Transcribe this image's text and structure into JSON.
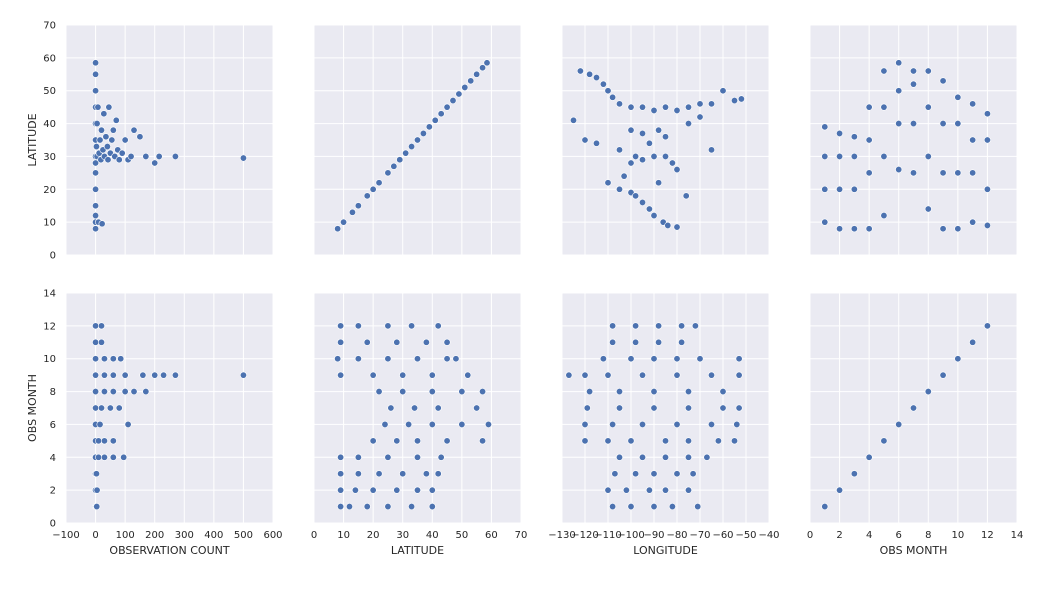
{
  "chart_data": {
    "type": "scatter",
    "layout": "pairplot",
    "grid": true,
    "style": {
      "background": "#eaeaf2",
      "grid_color": "#ffffff",
      "point_color": "#4c72b0",
      "point_edge": "#ffffff"
    },
    "columns": [
      {
        "key": "obs",
        "label": "OBSERVATION COUNT",
        "range": [
          -100,
          600
        ],
        "ticks": [
          "−100",
          "0",
          "100",
          "200",
          "300",
          "400",
          "500",
          "600"
        ]
      },
      {
        "key": "lat",
        "label": "LATITUDE",
        "range": [
          0,
          70
        ],
        "ticks": [
          "0",
          "10",
          "20",
          "30",
          "40",
          "50",
          "60",
          "70"
        ]
      },
      {
        "key": "lon",
        "label": "LONGITUDE",
        "range": [
          -130,
          -40
        ],
        "ticks": [
          "−130",
          "−120",
          "−110",
          "−100",
          "−90",
          "−80",
          "−70",
          "−60",
          "−50",
          "−40"
        ]
      },
      {
        "key": "month",
        "label": "OBS MONTH",
        "range": [
          0,
          14
        ],
        "ticks": [
          "0",
          "2",
          "4",
          "6",
          "8",
          "10",
          "12",
          "14"
        ]
      }
    ],
    "rows": [
      {
        "key": "lat",
        "label": "LATITUDE",
        "range": [
          0,
          70
        ],
        "ticks": [
          "0",
          "10",
          "20",
          "30",
          "40",
          "50",
          "60",
          "70"
        ]
      },
      {
        "key": "month",
        "label": "OBS MONTH",
        "range": [
          0,
          14
        ],
        "ticks": [
          "0",
          "2",
          "4",
          "6",
          "8",
          "10",
          "12",
          "14"
        ]
      }
    ],
    "points": {
      "obs_vs_lat": [
        [
          0,
          8
        ],
        [
          0,
          10
        ],
        [
          0,
          12
        ],
        [
          0,
          15
        ],
        [
          0,
          20
        ],
        [
          0,
          25
        ],
        [
          0,
          28
        ],
        [
          0,
          30
        ],
        [
          0,
          35
        ],
        [
          0,
          40
        ],
        [
          0,
          45
        ],
        [
          0,
          50
        ],
        [
          0,
          55
        ],
        [
          0,
          58.5
        ],
        [
          3,
          33
        ],
        [
          5,
          30
        ],
        [
          5,
          40
        ],
        [
          8,
          45
        ],
        [
          10,
          10
        ],
        [
          12,
          31
        ],
        [
          15,
          35
        ],
        [
          18,
          29
        ],
        [
          20,
          38
        ],
        [
          22,
          9.5
        ],
        [
          25,
          32
        ],
        [
          28,
          43
        ],
        [
          30,
          30
        ],
        [
          35,
          36
        ],
        [
          40,
          33
        ],
        [
          42,
          29
        ],
        [
          45,
          45
        ],
        [
          50,
          31
        ],
        [
          55,
          35
        ],
        [
          60,
          38
        ],
        [
          65,
          30
        ],
        [
          70,
          41
        ],
        [
          75,
          32
        ],
        [
          80,
          29
        ],
        [
          90,
          31
        ],
        [
          100,
          35
        ],
        [
          110,
          29
        ],
        [
          120,
          30
        ],
        [
          130,
          38
        ],
        [
          150,
          36
        ],
        [
          170,
          30
        ],
        [
          200,
          28
        ],
        [
          215,
          30
        ],
        [
          270,
          30
        ],
        [
          500,
          29.5
        ]
      ],
      "lat_vs_lat": [
        [
          8,
          8
        ],
        [
          10,
          10
        ],
        [
          13,
          13
        ],
        [
          15,
          15
        ],
        [
          18,
          18
        ],
        [
          20,
          20
        ],
        [
          22,
          22
        ],
        [
          25,
          25
        ],
        [
          27,
          27
        ],
        [
          29,
          29
        ],
        [
          31,
          31
        ],
        [
          33,
          33
        ],
        [
          35,
          35
        ],
        [
          37,
          37
        ],
        [
          39,
          39
        ],
        [
          41,
          41
        ],
        [
          43,
          43
        ],
        [
          45,
          45
        ],
        [
          47,
          47
        ],
        [
          49,
          49
        ],
        [
          51,
          51
        ],
        [
          53,
          53
        ],
        [
          55,
          55
        ],
        [
          57,
          57
        ],
        [
          58.5,
          58.5
        ]
      ],
      "lon_vs_lat": [
        [
          -125,
          41
        ],
        [
          -122,
          56
        ],
        [
          -118,
          55
        ],
        [
          -115,
          54
        ],
        [
          -112,
          52
        ],
        [
          -110,
          50
        ],
        [
          -120,
          35
        ],
        [
          -108,
          48
        ],
        [
          -105,
          46
        ],
        [
          -100,
          45
        ],
        [
          -95,
          45
        ],
        [
          -90,
          44
        ],
        [
          -85,
          45
        ],
        [
          -80,
          44
        ],
        [
          -75,
          45
        ],
        [
          -70,
          46
        ],
        [
          -65,
          46
        ],
        [
          -60,
          50
        ],
        [
          -55,
          47
        ],
        [
          -52,
          47.5
        ],
        [
          -115,
          34
        ],
        [
          -105,
          32
        ],
        [
          -98,
          30
        ],
        [
          -95,
          29
        ],
        [
          -90,
          30
        ],
        [
          -85,
          30
        ],
        [
          -82,
          28
        ],
        [
          -80,
          26
        ],
        [
          -75,
          40
        ],
        [
          -70,
          42
        ],
        [
          -100,
          38
        ],
        [
          -95,
          37
        ],
        [
          -88,
          38
        ],
        [
          -85,
          36
        ],
        [
          -92,
          34
        ],
        [
          -100,
          28
        ],
        [
          -103,
          24
        ],
        [
          -105,
          20
        ],
        [
          -100,
          19
        ],
        [
          -98,
          18
        ],
        [
          -95,
          16
        ],
        [
          -92,
          14
        ],
        [
          -90,
          12
        ],
        [
          -86,
          10
        ],
        [
          -84,
          9
        ],
        [
          -80,
          8.5
        ],
        [
          -88,
          22
        ],
        [
          -76,
          18
        ],
        [
          -110,
          22
        ],
        [
          -65,
          32
        ]
      ],
      "month_vs_lat": [
        [
          1,
          10
        ],
        [
          1,
          20
        ],
        [
          1,
          30
        ],
        [
          1,
          39
        ],
        [
          2,
          8
        ],
        [
          2,
          20
        ],
        [
          2,
          30
        ],
        [
          2,
          37
        ],
        [
          3,
          8
        ],
        [
          3,
          20
        ],
        [
          3,
          30
        ],
        [
          3,
          36
        ],
        [
          4,
          8
        ],
        [
          4,
          25
        ],
        [
          4,
          35
        ],
        [
          4,
          45
        ],
        [
          5,
          12
        ],
        [
          5,
          30
        ],
        [
          5,
          45
        ],
        [
          5,
          56
        ],
        [
          6,
          26
        ],
        [
          6,
          40
        ],
        [
          6,
          50
        ],
        [
          6,
          58.5
        ],
        [
          7,
          25
        ],
        [
          7,
          40
        ],
        [
          7,
          52
        ],
        [
          7,
          56
        ],
        [
          8,
          14
        ],
        [
          8,
          30
        ],
        [
          8,
          45
        ],
        [
          8,
          56
        ],
        [
          9,
          8
        ],
        [
          9,
          25
        ],
        [
          9,
          40
        ],
        [
          9,
          53
        ],
        [
          10,
          8
        ],
        [
          10,
          25
        ],
        [
          10,
          40
        ],
        [
          10,
          48
        ],
        [
          11,
          10
        ],
        [
          11,
          25
        ],
        [
          11,
          35
        ],
        [
          11,
          46
        ],
        [
          12,
          9
        ],
        [
          12,
          20
        ],
        [
          12,
          35
        ],
        [
          12,
          43
        ]
      ],
      "obs_vs_month": [
        [
          0,
          1
        ],
        [
          2,
          1
        ],
        [
          4,
          1
        ],
        [
          0,
          2
        ],
        [
          5,
          2
        ],
        [
          0,
          3
        ],
        [
          3,
          3
        ],
        [
          0,
          4
        ],
        [
          10,
          4
        ],
        [
          30,
          4
        ],
        [
          60,
          4
        ],
        [
          95,
          4
        ],
        [
          0,
          5
        ],
        [
          10,
          5
        ],
        [
          30,
          5
        ],
        [
          60,
          5
        ],
        [
          0,
          6
        ],
        [
          15,
          6
        ],
        [
          110,
          6
        ],
        [
          0,
          7
        ],
        [
          20,
          7
        ],
        [
          50,
          7
        ],
        [
          80,
          7
        ],
        [
          0,
          8
        ],
        [
          30,
          8
        ],
        [
          60,
          8
        ],
        [
          100,
          8
        ],
        [
          130,
          8
        ],
        [
          170,
          8
        ],
        [
          0,
          9
        ],
        [
          30,
          9
        ],
        [
          60,
          9
        ],
        [
          100,
          9
        ],
        [
          160,
          9
        ],
        [
          200,
          9
        ],
        [
          230,
          9
        ],
        [
          270,
          9
        ],
        [
          500,
          9
        ],
        [
          0,
          10
        ],
        [
          30,
          10
        ],
        [
          60,
          10
        ],
        [
          85,
          10
        ],
        [
          0,
          11
        ],
        [
          20,
          11
        ],
        [
          0,
          12
        ],
        [
          20,
          12
        ]
      ],
      "lat_vs_month": [
        [
          9,
          1
        ],
        [
          12,
          1
        ],
        [
          18,
          1
        ],
        [
          25,
          1
        ],
        [
          33,
          1
        ],
        [
          40,
          1
        ],
        [
          9,
          2
        ],
        [
          14,
          2
        ],
        [
          20,
          2
        ],
        [
          28,
          2
        ],
        [
          35,
          2
        ],
        [
          40,
          2
        ],
        [
          9,
          3
        ],
        [
          15,
          3
        ],
        [
          22,
          3
        ],
        [
          30,
          3
        ],
        [
          38,
          3
        ],
        [
          42,
          3
        ],
        [
          9,
          4
        ],
        [
          15,
          4
        ],
        [
          25,
          4
        ],
        [
          35,
          4
        ],
        [
          43,
          4
        ],
        [
          20,
          5
        ],
        [
          28,
          5
        ],
        [
          35,
          5
        ],
        [
          45,
          5
        ],
        [
          57,
          5
        ],
        [
          24,
          6
        ],
        [
          32,
          6
        ],
        [
          40,
          6
        ],
        [
          50,
          6
        ],
        [
          59,
          6
        ],
        [
          26,
          7
        ],
        [
          34,
          7
        ],
        [
          42,
          7
        ],
        [
          55,
          7
        ],
        [
          22,
          8
        ],
        [
          30,
          8
        ],
        [
          40,
          8
        ],
        [
          50,
          8
        ],
        [
          57,
          8
        ],
        [
          9,
          9
        ],
        [
          20,
          9
        ],
        [
          30,
          9
        ],
        [
          40,
          9
        ],
        [
          52,
          9
        ],
        [
          8,
          10
        ],
        [
          15,
          10
        ],
        [
          25,
          10
        ],
        [
          35,
          10
        ],
        [
          45,
          10
        ],
        [
          48,
          10
        ],
        [
          9,
          11
        ],
        [
          18,
          11
        ],
        [
          28,
          11
        ],
        [
          38,
          11
        ],
        [
          45,
          11
        ],
        [
          9,
          12
        ],
        [
          15,
          12
        ],
        [
          25,
          12
        ],
        [
          33,
          12
        ],
        [
          42,
          12
        ]
      ],
      "lon_vs_month": [
        [
          -108,
          1
        ],
        [
          -100,
          1
        ],
        [
          -90,
          1
        ],
        [
          -82,
          1
        ],
        [
          -71,
          1
        ],
        [
          -110,
          2
        ],
        [
          -102,
          2
        ],
        [
          -92,
          2
        ],
        [
          -85,
          2
        ],
        [
          -75,
          2
        ],
        [
          -107,
          3
        ],
        [
          -98,
          3
        ],
        [
          -90,
          3
        ],
        [
          -80,
          3
        ],
        [
          -73,
          3
        ],
        [
          -105,
          4
        ],
        [
          -95,
          4
        ],
        [
          -85,
          4
        ],
        [
          -75,
          4
        ],
        [
          -67,
          4
        ],
        [
          -120,
          5
        ],
        [
          -110,
          5
        ],
        [
          -100,
          5
        ],
        [
          -85,
          5
        ],
        [
          -75,
          5
        ],
        [
          -62,
          5
        ],
        [
          -55,
          5
        ],
        [
          -120,
          6
        ],
        [
          -108,
          6
        ],
        [
          -95,
          6
        ],
        [
          -80,
          6
        ],
        [
          -65,
          6
        ],
        [
          -54,
          6
        ],
        [
          -119,
          7
        ],
        [
          -105,
          7
        ],
        [
          -90,
          7
        ],
        [
          -75,
          7
        ],
        [
          -60,
          7
        ],
        [
          -53,
          7
        ],
        [
          -118,
          8
        ],
        [
          -105,
          8
        ],
        [
          -90,
          8
        ],
        [
          -75,
          8
        ],
        [
          -60,
          8
        ],
        [
          -127,
          9
        ],
        [
          -120,
          9
        ],
        [
          -110,
          9
        ],
        [
          -95,
          9
        ],
        [
          -80,
          9
        ],
        [
          -65,
          9
        ],
        [
          -53,
          9
        ],
        [
          -112,
          10
        ],
        [
          -100,
          10
        ],
        [
          -90,
          10
        ],
        [
          -80,
          10
        ],
        [
          -70,
          10
        ],
        [
          -53,
          10
        ],
        [
          -108,
          11
        ],
        [
          -98,
          11
        ],
        [
          -88,
          11
        ],
        [
          -78,
          11
        ],
        [
          -108,
          12
        ],
        [
          -98,
          12
        ],
        [
          -88,
          12
        ],
        [
          -78,
          12
        ],
        [
          -72,
          12
        ]
      ],
      "month_vs_month": [
        [
          1,
          1
        ],
        [
          2,
          2
        ],
        [
          3,
          3
        ],
        [
          4,
          4
        ],
        [
          5,
          5
        ],
        [
          6,
          6
        ],
        [
          7,
          7
        ],
        [
          8,
          8
        ],
        [
          9,
          9
        ],
        [
          10,
          10
        ],
        [
          11,
          11
        ],
        [
          12,
          12
        ]
      ]
    }
  }
}
